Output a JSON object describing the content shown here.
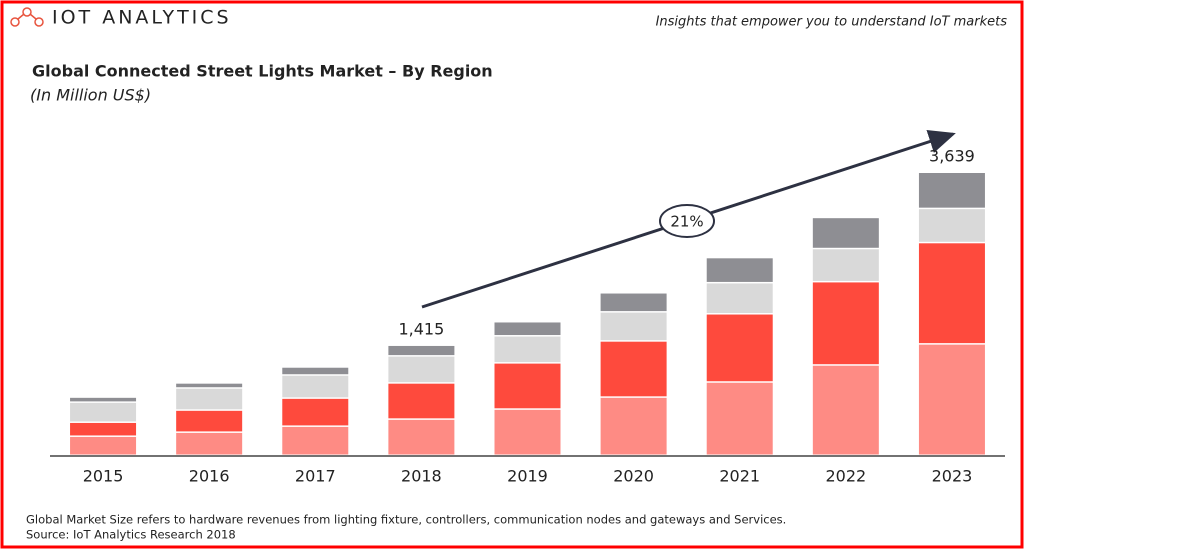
{
  "header": {
    "logo": "IOT ANALYTICS",
    "tagline": "Insights that empower you to understand IoT markets"
  },
  "chart_data": {
    "type": "bar",
    "stacked": true,
    "title": "Global Connected Street Lights Market – By Region",
    "subtitle": "(In Million US$)",
    "categories": [
      "2015",
      "2016",
      "2017",
      "2018",
      "2019",
      "2020",
      "2021",
      "2022",
      "2023"
    ],
    "series": [
      {
        "color": "#fe8b84",
        "values": [
          245,
          297,
          374,
          465,
          594,
          748,
          942,
          1161,
          1432
        ]
      },
      {
        "color": "#fe4a3d",
        "values": [
          180,
          284,
          361,
          465,
          594,
          722,
          877,
          1071,
          1303
        ]
      },
      {
        "color": "#d9d9d9",
        "values": [
          258,
          284,
          297,
          348,
          348,
          374,
          400,
          426,
          439
        ]
      },
      {
        "color": "#8e8e93",
        "values": [
          65,
          65,
          103,
          137,
          181,
          245,
          323,
          400,
          465
        ]
      }
    ],
    "total_labels": [
      {
        "x": "2018",
        "value": 1415,
        "label": "1,415"
      },
      {
        "x": "2023",
        "value": 3639,
        "label": "3,639"
      }
    ],
    "growth_annotation": "21%"
  },
  "footer": {
    "note": "Global Market Size refers to hardware revenues from lighting fixture, controllers, communication nodes and gateways and Services.",
    "source": "Source: IoT Analytics Research 2018"
  }
}
